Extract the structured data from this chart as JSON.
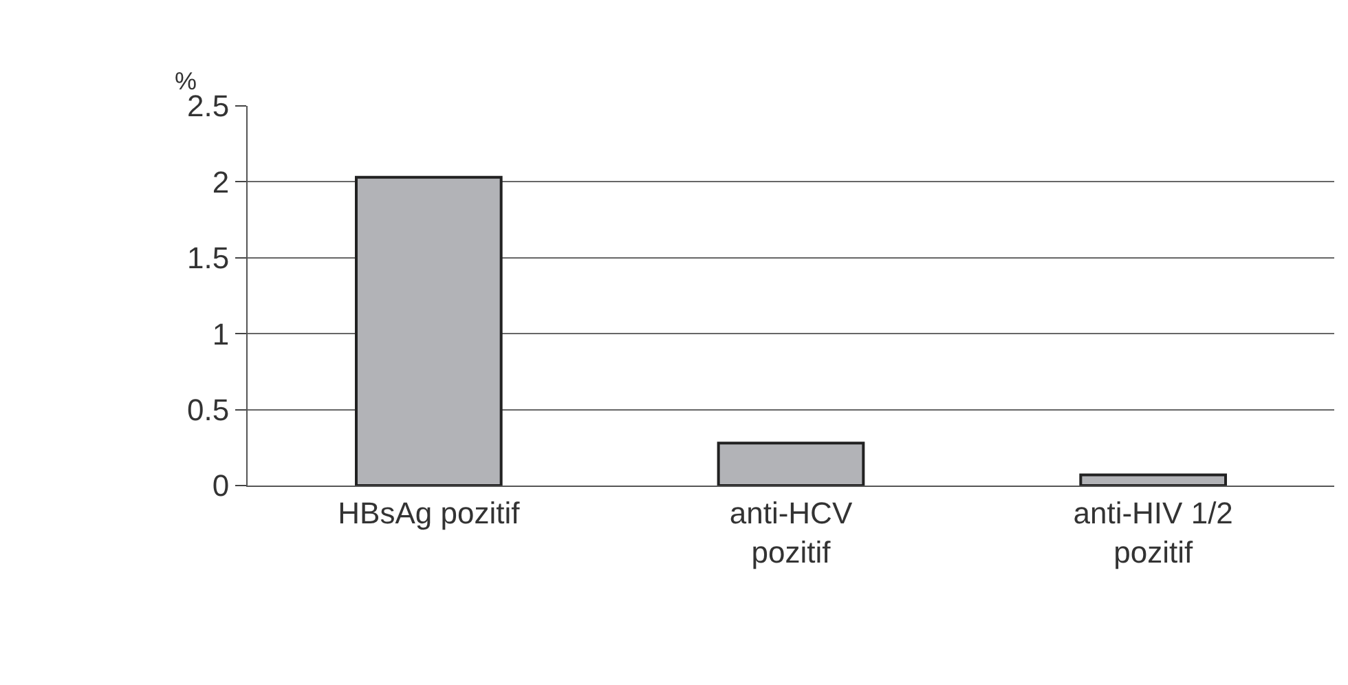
{
  "chart_data": {
    "type": "bar",
    "ylabel": "%",
    "categories": [
      "HBsAg pozitif",
      "anti-HCV\npozitif",
      "anti-HIV 1/2\npozitif"
    ],
    "values": [
      2.03,
      0.28,
      0.07
    ],
    "color": "#b2b3b7",
    "ylim": [
      0,
      2.5
    ],
    "yticks": [
      0,
      0.5,
      1,
      1.5,
      2,
      2.5
    ],
    "grid": "y"
  }
}
